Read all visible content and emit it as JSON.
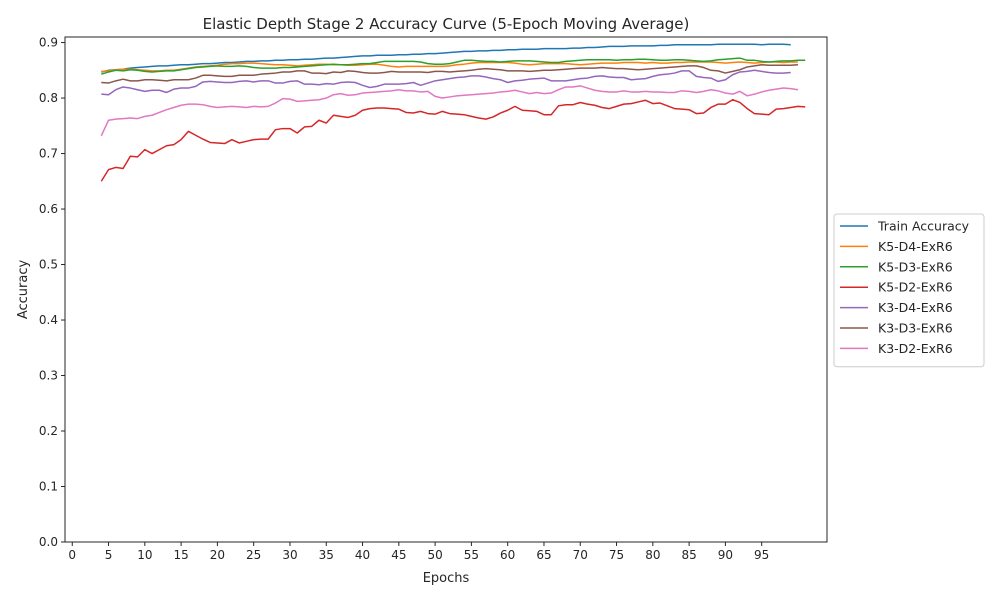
{
  "chart_data": {
    "type": "line",
    "title": "Elastic Depth Stage 2 Accuracy Curve (5-Epoch Moving Average)",
    "xlabel": "Epochs",
    "ylabel": "Accuracy",
    "xlim": [
      -1,
      104
    ],
    "ylim": [
      0.0,
      0.91
    ],
    "xticks": [
      0,
      5,
      10,
      15,
      20,
      25,
      30,
      35,
      40,
      45,
      50,
      55,
      60,
      65,
      70,
      75,
      80,
      85,
      90,
      95
    ],
    "yticks": [
      0.0,
      0.1,
      0.2,
      0.3,
      0.4,
      0.5,
      0.6,
      0.7,
      0.8,
      0.9
    ],
    "grid": false,
    "legend_position": "outside-right",
    "x_start": 4,
    "series": [
      {
        "name": "Train Accuracy",
        "color": "#1f77b4",
        "values": [
          0.847,
          0.85,
          0.851,
          0.852,
          0.854,
          0.855,
          0.856,
          0.857,
          0.858,
          0.858,
          0.859,
          0.86,
          0.86,
          0.861,
          0.862,
          0.862,
          0.863,
          0.864,
          0.864,
          0.865,
          0.866,
          0.866,
          0.867,
          0.867,
          0.868,
          0.868,
          0.869,
          0.869,
          0.87,
          0.87,
          0.871,
          0.872,
          0.872,
          0.873,
          0.874,
          0.875,
          0.876,
          0.876,
          0.877,
          0.877,
          0.877,
          0.878,
          0.878,
          0.879,
          0.879,
          0.88,
          0.88,
          0.881,
          0.882,
          0.883,
          0.884,
          0.884,
          0.885,
          0.885,
          0.886,
          0.886,
          0.887,
          0.887,
          0.888,
          0.888,
          0.888,
          0.889,
          0.889,
          0.889,
          0.889,
          0.89,
          0.89,
          0.891,
          0.891,
          0.892,
          0.893,
          0.893,
          0.893,
          0.894,
          0.894,
          0.894,
          0.894,
          0.895,
          0.895,
          0.896,
          0.896,
          0.896,
          0.896,
          0.896,
          0.896,
          0.897,
          0.897,
          0.897,
          0.897,
          0.897,
          0.897,
          0.896,
          0.897,
          0.897,
          0.897,
          0.896
        ]
      },
      {
        "name": "K5-D4-ExR6",
        "color": "#ff7f0e",
        "values": [
          0.848,
          0.849,
          0.851,
          0.852,
          0.852,
          0.851,
          0.85,
          0.849,
          0.849,
          0.85,
          0.85,
          0.852,
          0.854,
          0.856,
          0.857,
          0.858,
          0.859,
          0.861,
          0.862,
          0.862,
          0.863,
          0.863,
          0.862,
          0.861,
          0.86,
          0.86,
          0.859,
          0.858,
          0.859,
          0.86,
          0.861,
          0.861,
          0.86,
          0.86,
          0.859,
          0.859,
          0.86,
          0.861,
          0.861,
          0.859,
          0.857,
          0.856,
          0.857,
          0.857,
          0.857,
          0.857,
          0.857,
          0.857,
          0.858,
          0.86,
          0.861,
          0.863,
          0.864,
          0.864,
          0.864,
          0.864,
          0.864,
          0.863,
          0.861,
          0.86,
          0.861,
          0.862,
          0.862,
          0.862,
          0.862,
          0.861,
          0.86,
          0.861,
          0.862,
          0.863,
          0.863,
          0.863,
          0.864,
          0.864,
          0.864,
          0.863,
          0.864,
          0.863,
          0.863,
          0.864,
          0.864,
          0.865,
          0.865,
          0.865,
          0.865,
          0.864,
          0.863,
          0.864,
          0.865,
          0.864,
          0.863,
          0.864,
          0.865,
          0.865,
          0.864,
          0.865,
          0.865
        ]
      },
      {
        "name": "K5-D3-ExR6",
        "color": "#2ca02c",
        "values": [
          0.843,
          0.847,
          0.85,
          0.849,
          0.851,
          0.85,
          0.848,
          0.847,
          0.848,
          0.849,
          0.849,
          0.851,
          0.853,
          0.855,
          0.856,
          0.857,
          0.858,
          0.857,
          0.857,
          0.858,
          0.857,
          0.855,
          0.854,
          0.854,
          0.854,
          0.855,
          0.855,
          0.856,
          0.857,
          0.858,
          0.859,
          0.86,
          0.861,
          0.86,
          0.86,
          0.861,
          0.862,
          0.862,
          0.864,
          0.866,
          0.866,
          0.866,
          0.866,
          0.866,
          0.865,
          0.862,
          0.861,
          0.861,
          0.862,
          0.865,
          0.868,
          0.868,
          0.867,
          0.866,
          0.866,
          0.865,
          0.866,
          0.867,
          0.867,
          0.867,
          0.866,
          0.865,
          0.864,
          0.864,
          0.866,
          0.867,
          0.868,
          0.869,
          0.869,
          0.869,
          0.869,
          0.868,
          0.869,
          0.869,
          0.87,
          0.87,
          0.869,
          0.868,
          0.868,
          0.869,
          0.869,
          0.868,
          0.867,
          0.866,
          0.867,
          0.869,
          0.87,
          0.871,
          0.872,
          0.868,
          0.868,
          0.866,
          0.865,
          0.866,
          0.867,
          0.867,
          0.868,
          0.868
        ]
      },
      {
        "name": "K5-D2-ExR6",
        "color": "#d62728",
        "values": [
          0.65,
          0.671,
          0.675,
          0.673,
          0.695,
          0.694,
          0.707,
          0.7,
          0.707,
          0.714,
          0.716,
          0.725,
          0.74,
          0.733,
          0.726,
          0.72,
          0.719,
          0.718,
          0.725,
          0.719,
          0.722,
          0.725,
          0.726,
          0.726,
          0.743,
          0.745,
          0.745,
          0.737,
          0.748,
          0.749,
          0.76,
          0.755,
          0.769,
          0.767,
          0.765,
          0.769,
          0.778,
          0.781,
          0.782,
          0.782,
          0.781,
          0.78,
          0.774,
          0.773,
          0.776,
          0.772,
          0.771,
          0.776,
          0.772,
          0.771,
          0.77,
          0.767,
          0.764,
          0.762,
          0.766,
          0.773,
          0.778,
          0.785,
          0.778,
          0.777,
          0.776,
          0.77,
          0.77,
          0.786,
          0.788,
          0.788,
          0.792,
          0.789,
          0.787,
          0.783,
          0.781,
          0.785,
          0.789,
          0.79,
          0.793,
          0.796,
          0.79,
          0.791,
          0.786,
          0.781,
          0.78,
          0.779,
          0.772,
          0.773,
          0.783,
          0.789,
          0.789,
          0.797,
          0.792,
          0.781,
          0.772,
          0.771,
          0.77,
          0.78,
          0.781,
          0.783,
          0.785,
          0.784
        ]
      },
      {
        "name": "K3-D4-ExR6",
        "color": "#9467bd",
        "values": [
          0.807,
          0.806,
          0.815,
          0.82,
          0.818,
          0.815,
          0.812,
          0.814,
          0.814,
          0.81,
          0.816,
          0.818,
          0.818,
          0.821,
          0.829,
          0.83,
          0.829,
          0.828,
          0.828,
          0.83,
          0.831,
          0.829,
          0.831,
          0.831,
          0.827,
          0.827,
          0.83,
          0.831,
          0.825,
          0.825,
          0.824,
          0.826,
          0.825,
          0.828,
          0.829,
          0.828,
          0.823,
          0.819,
          0.821,
          0.825,
          0.825,
          0.825,
          0.826,
          0.828,
          0.823,
          0.827,
          0.831,
          0.833,
          0.835,
          0.837,
          0.838,
          0.84,
          0.84,
          0.838,
          0.835,
          0.833,
          0.828,
          0.831,
          0.832,
          0.834,
          0.835,
          0.836,
          0.831,
          0.831,
          0.831,
          0.833,
          0.835,
          0.836,
          0.839,
          0.84,
          0.838,
          0.837,
          0.837,
          0.833,
          0.834,
          0.835,
          0.839,
          0.842,
          0.843,
          0.845,
          0.849,
          0.849,
          0.839,
          0.837,
          0.836,
          0.83,
          0.833,
          0.842,
          0.847,
          0.848,
          0.85,
          0.848,
          0.846,
          0.845,
          0.845,
          0.846
        ]
      },
      {
        "name": "K3-D3-ExR6",
        "color": "#8c564b",
        "values": [
          0.828,
          0.827,
          0.831,
          0.834,
          0.831,
          0.831,
          0.833,
          0.833,
          0.832,
          0.831,
          0.833,
          0.833,
          0.833,
          0.836,
          0.841,
          0.841,
          0.84,
          0.839,
          0.839,
          0.841,
          0.841,
          0.841,
          0.843,
          0.844,
          0.845,
          0.847,
          0.847,
          0.849,
          0.849,
          0.845,
          0.845,
          0.844,
          0.847,
          0.846,
          0.849,
          0.848,
          0.846,
          0.845,
          0.845,
          0.846,
          0.848,
          0.847,
          0.847,
          0.847,
          0.847,
          0.846,
          0.848,
          0.848,
          0.847,
          0.848,
          0.849,
          0.85,
          0.852,
          0.853,
          0.852,
          0.851,
          0.849,
          0.849,
          0.849,
          0.848,
          0.849,
          0.85,
          0.85,
          0.851,
          0.852,
          0.853,
          0.854,
          0.854,
          0.854,
          0.855,
          0.854,
          0.853,
          0.853,
          0.852,
          0.851,
          0.852,
          0.853,
          0.854,
          0.855,
          0.856,
          0.857,
          0.858,
          0.858,
          0.855,
          0.85,
          0.849,
          0.845,
          0.848,
          0.851,
          0.856,
          0.858,
          0.86,
          0.859,
          0.859,
          0.859,
          0.859,
          0.86
        ]
      },
      {
        "name": "K3-D2-ExR6",
        "color": "#e377c2",
        "values": [
          0.732,
          0.76,
          0.762,
          0.763,
          0.764,
          0.763,
          0.767,
          0.769,
          0.774,
          0.779,
          0.783,
          0.787,
          0.789,
          0.789,
          0.788,
          0.785,
          0.783,
          0.784,
          0.785,
          0.784,
          0.783,
          0.785,
          0.784,
          0.785,
          0.791,
          0.799,
          0.798,
          0.794,
          0.795,
          0.796,
          0.797,
          0.8,
          0.806,
          0.808,
          0.805,
          0.806,
          0.809,
          0.81,
          0.811,
          0.812,
          0.813,
          0.815,
          0.813,
          0.813,
          0.811,
          0.812,
          0.803,
          0.8,
          0.802,
          0.804,
          0.805,
          0.806,
          0.807,
          0.808,
          0.809,
          0.811,
          0.812,
          0.814,
          0.811,
          0.808,
          0.81,
          0.808,
          0.809,
          0.815,
          0.82,
          0.82,
          0.822,
          0.818,
          0.814,
          0.812,
          0.811,
          0.811,
          0.813,
          0.811,
          0.811,
          0.812,
          0.811,
          0.811,
          0.81,
          0.81,
          0.813,
          0.812,
          0.81,
          0.812,
          0.815,
          0.813,
          0.809,
          0.807,
          0.812,
          0.804,
          0.807,
          0.811,
          0.814,
          0.816,
          0.818,
          0.817,
          0.815
        ]
      }
    ]
  }
}
